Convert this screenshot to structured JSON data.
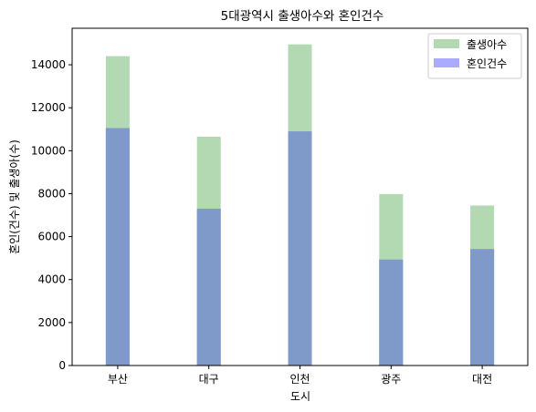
{
  "chart_data": {
    "type": "bar",
    "title": "5대광역시 출생아수와 혼인건수",
    "xlabel": "도시",
    "ylabel": "혼인(건수) 및 출생아(수)",
    "categories": [
      "부산",
      "대구",
      "인천",
      "광주",
      "대전"
    ],
    "series": [
      {
        "name": "출생아수",
        "values": [
          14400,
          10650,
          14950,
          7980,
          7450
        ],
        "color": "#b2d9b2",
        "opacity": 0.3
      },
      {
        "name": "혼인건수",
        "values": [
          11050,
          7300,
          10900,
          4930,
          5420
        ],
        "color": "#aaaaff",
        "opacity": 0.3
      }
    ],
    "overlap_color": "#7f99c9",
    "ylim": [
      0,
      15700
    ],
    "yticks": [
      0,
      2000,
      4000,
      6000,
      8000,
      10000,
      12000,
      14000
    ],
    "grid": false,
    "legend_position": "top-right"
  }
}
